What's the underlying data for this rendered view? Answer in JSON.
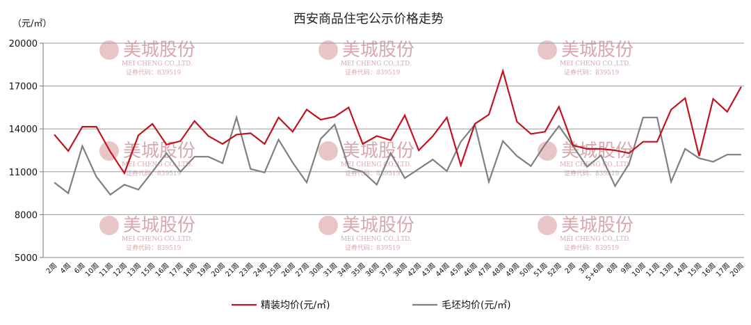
{
  "chart_data": {
    "type": "line",
    "title": "西安商品住宅公示价格走势",
    "ylabel": "（元/㎡）",
    "xlabel": "",
    "ylim": [
      5000,
      20000
    ],
    "yticks": [
      5000,
      8000,
      11000,
      14000,
      17000,
      20000
    ],
    "grid": true,
    "legend_position": "bottom",
    "categories": [
      "2周",
      "4周",
      "6周",
      "10周",
      "11周",
      "12周",
      "13周",
      "15周",
      "16周",
      "17周",
      "18周",
      "19周",
      "20周",
      "21周",
      "23周",
      "24周",
      "25周",
      "26周",
      "27周",
      "30周",
      "31周",
      "34周",
      "35周",
      "36周",
      "37周",
      "38周",
      "42周",
      "43周",
      "44周",
      "45周",
      "46周",
      "47周",
      "48周",
      "49周",
      "50周",
      "51周",
      "52周",
      "2周",
      "3周",
      "5+6周",
      "8周",
      "9周",
      "10周",
      "11周",
      "13周",
      "14周",
      "15周",
      "16周",
      "17周",
      "20周"
    ],
    "series": [
      {
        "name": "精装均价(元/㎡)",
        "color": "#c0121f",
        "values": [
          13600,
          12450,
          14150,
          14150,
          12400,
          10900,
          13550,
          14350,
          12900,
          13150,
          14550,
          13500,
          12950,
          13600,
          13700,
          12950,
          14800,
          13800,
          15350,
          14650,
          14850,
          15500,
          12950,
          13500,
          13200,
          14950,
          12500,
          13500,
          14800,
          11450,
          14350,
          15000,
          18050,
          14500,
          13650,
          13800,
          15550,
          12850,
          12600,
          12600,
          12500,
          12300,
          13100,
          13100,
          15350,
          16150,
          12100,
          16100,
          15200,
          16950
        ]
      },
      {
        "name": "毛坯均价(元/㎡)",
        "color": "#7f7f7f",
        "values": [
          10250,
          9500,
          12800,
          10650,
          9400,
          10100,
          9750,
          11000,
          12300,
          11000,
          12050,
          12050,
          11600,
          14800,
          11200,
          10950,
          13250,
          11650,
          10250,
          13300,
          14300,
          11300,
          11000,
          10100,
          12300,
          10550,
          11200,
          11850,
          11050,
          13100,
          14300,
          10300,
          13150,
          12100,
          11400,
          12900,
          14200,
          12800,
          11350,
          12150,
          10000,
          11550,
          14800,
          14800,
          10300,
          12600,
          11950,
          11700,
          12200,
          12200
        ]
      }
    ]
  },
  "watermark": {
    "name": "美城股份",
    "english": "MEI CHENG CO.,LTD.",
    "code": "证券代码：839519"
  }
}
